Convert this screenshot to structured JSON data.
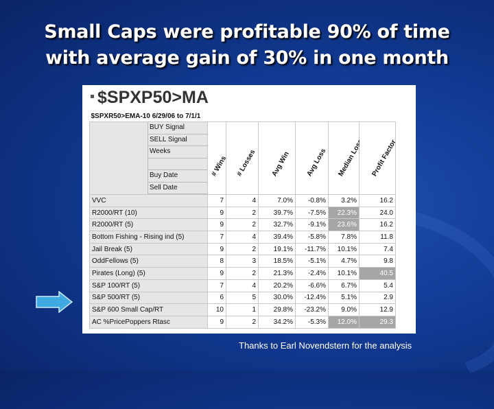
{
  "title_line1": "Small Caps were profitable 90% of time",
  "title_line2": "with average gain of 30% in one month",
  "sheet": {
    "title": "$SPXP50>MA",
    "range_label": "$SPXR50>EMA-10 6/29/06 to 7/1/1",
    "signals": [
      "BUY Signal",
      "SELL Signal",
      "Weeks",
      "",
      "Buy  Date",
      "Sell  Date"
    ],
    "columns": [
      "# Wins",
      "# Losses",
      "Avg Win",
      "Avg Loss",
      "Median Loss",
      "Profit Factor"
    ],
    "rows": [
      {
        "name": "VVC",
        "wins": "7",
        "losses": "4",
        "avg_win": "7.0%",
        "avg_loss": "-0.8%",
        "median": "3.2%",
        "pf": "16.2"
      },
      {
        "name": "R2000/RT (10)",
        "wins": "9",
        "losses": "2",
        "avg_win": "39.7%",
        "avg_loss": "-7.5%",
        "median": "22.3%",
        "pf": "24.0"
      },
      {
        "name": "R2000/RT (5)",
        "wins": "9",
        "losses": "2",
        "avg_win": "32.7%",
        "avg_loss": "-9.1%",
        "median": "23.6%",
        "pf": "16.2"
      },
      {
        "name": "Bottom Fishing - Rising ind (5)",
        "wins": "7",
        "losses": "4",
        "avg_win": "39.4%",
        "avg_loss": "-5.8%",
        "median": "7.8%",
        "pf": "11.8"
      },
      {
        "name": "Jail Break (5)",
        "wins": "9",
        "losses": "2",
        "avg_win": "19.1%",
        "avg_loss": "-11.7%",
        "median": "10.1%",
        "pf": "7.4"
      },
      {
        "name": "OddFellows (5)",
        "wins": "8",
        "losses": "3",
        "avg_win": "18.5%",
        "avg_loss": "-5.1%",
        "median": "4.7%",
        "pf": "9.8"
      },
      {
        "name": "Pirates (Long) (5)",
        "wins": "9",
        "losses": "2",
        "avg_win": "21.3%",
        "avg_loss": "-2.4%",
        "median": "10.1%",
        "pf": "40.5"
      },
      {
        "name": "S&P 100/RT (5)",
        "wins": "7",
        "losses": "4",
        "avg_win": "20.2%",
        "avg_loss": "-6.6%",
        "median": "6.7%",
        "pf": "5.4"
      },
      {
        "name": "S&P 500/RT (5)",
        "wins": "6",
        "losses": "5",
        "avg_win": "30.0%",
        "avg_loss": "-12.4%",
        "median": "5.1%",
        "pf": "2.9"
      },
      {
        "name": "S&P 600 Small Cap/RT",
        "wins": "10",
        "losses": "1",
        "avg_win": "29.8%",
        "avg_loss": "-23.2%",
        "median": "9.0%",
        "pf": "12.9"
      },
      {
        "name": "AC %PricePoppers Rtasc",
        "wins": "9",
        "losses": "2",
        "avg_win": "34.2%",
        "avg_loss": "-5.3%",
        "median": "12.0%",
        "pf": "29.3"
      }
    ]
  },
  "credit": "Thanks to Earl Novendstern for the analysis",
  "colors": {
    "background": "#113a93",
    "highlight_cell": "#a6a6a6",
    "arrow": "#3fa9e0"
  },
  "arrow_icon": "right-arrow-icon"
}
